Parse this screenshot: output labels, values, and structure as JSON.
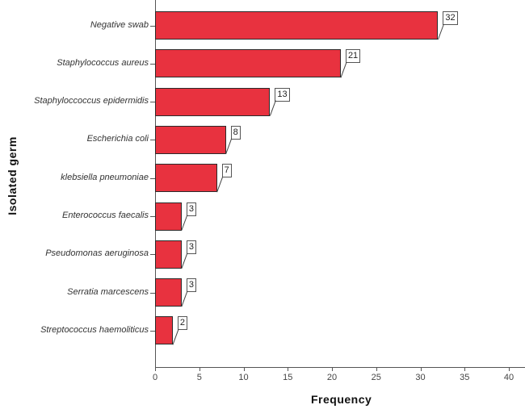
{
  "chart_data": {
    "type": "bar",
    "orientation": "horizontal",
    "title": "",
    "xlabel": "Frequency",
    "ylabel": "Isolated germ",
    "categories": [
      "Negative swab",
      "Staphylococcus aureus",
      "Staphyloccoccus epidermidis",
      "Escherichia coli",
      "klebsiella pneumoniae",
      "Enterococcus faecalis",
      "Pseudomonas aeruginosa",
      "Serratia marcescens",
      "Streptococcus haemoliticus"
    ],
    "values": [
      32,
      21,
      13,
      8,
      7,
      3,
      3,
      3,
      2
    ],
    "xlim": [
      0,
      42
    ],
    "xticks": [
      0,
      5,
      10,
      15,
      20,
      25,
      30,
      35,
      40
    ],
    "grid": false,
    "legend": null,
    "data_labels": true,
    "bar_color": "#e8323f"
  }
}
